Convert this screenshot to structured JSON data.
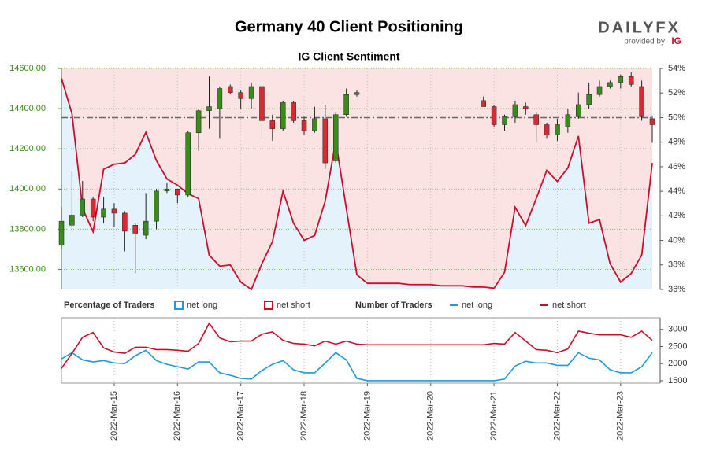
{
  "logo": {
    "name": "DAILYFX",
    "tagline": "provided by",
    "brand": "IG"
  },
  "chart_data": [
    {
      "type": "candlestick",
      "title": "Germany 40 Client Positioning",
      "subtitle": "IG Client Sentiment",
      "categories": [
        null,
        null,
        null,
        null,
        null,
        "2022-Mar-15",
        null,
        null,
        null,
        null,
        null,
        "2022-Mar-16",
        null,
        null,
        null,
        null,
        null,
        "2022-Mar-17",
        null,
        null,
        null,
        null,
        null,
        "2022-Mar-18",
        null,
        null,
        null,
        null,
        null,
        "2022-Mar-19",
        null,
        null,
        null,
        null,
        null,
        "2022-Mar-20",
        null,
        null,
        null,
        null,
        null,
        "2022-Mar-21",
        null,
        null,
        null,
        null,
        null,
        "2022-Mar-22",
        null,
        null,
        null,
        null,
        null,
        "2022-Mar-23",
        null,
        null,
        null
      ],
      "open": [
        13720,
        13820,
        13870,
        13950,
        13860,
        13900,
        13880,
        13820,
        13770,
        13840,
        13990,
        14000,
        13970,
        14280,
        14390,
        14400,
        14510,
        14480,
        14450,
        14510,
        14340,
        14300,
        14430,
        14340,
        14290,
        14350,
        14140,
        14370,
        14470,
        null,
        null,
        null,
        null,
        null,
        null,
        null,
        null,
        null,
        null,
        null,
        14440,
        14410,
        14320,
        14360,
        14410,
        14370,
        14320,
        14270,
        14310,
        14360,
        14420,
        14470,
        14510,
        14530,
        14560,
        14510,
        14350
      ],
      "high": [
        13910,
        14090,
        14040,
        13960,
        13960,
        13930,
        13890,
        13830,
        13980,
        14000,
        14030,
        14000,
        14290,
        14400,
        14560,
        14510,
        14520,
        14490,
        14530,
        14520,
        14370,
        14440,
        14440,
        14360,
        14410,
        14420,
        14380,
        14500,
        14490,
        null,
        null,
        null,
        null,
        null,
        null,
        null,
        null,
        null,
        null,
        null,
        14460,
        14420,
        14370,
        14440,
        14430,
        14380,
        14330,
        14350,
        14400,
        14480,
        14530,
        14540,
        14540,
        14570,
        14580,
        14540,
        14360
      ],
      "low": [
        13700,
        13810,
        13860,
        13840,
        13830,
        13810,
        13690,
        13580,
        13750,
        13800,
        13980,
        13930,
        13960,
        14190,
        14300,
        14250,
        14470,
        14400,
        14400,
        14250,
        14240,
        14290,
        14330,
        14270,
        14280,
        14100,
        14130,
        14360,
        14460,
        null,
        null,
        null,
        null,
        null,
        null,
        null,
        null,
        null,
        null,
        null,
        14410,
        14310,
        14290,
        14330,
        14370,
        14230,
        14250,
        14240,
        14280,
        14350,
        14400,
        14460,
        14500,
        14500,
        14510,
        14340,
        14230
      ],
      "close": [
        13840,
        13870,
        13950,
        13860,
        13900,
        13880,
        13790,
        13780,
        13840,
        13990,
        14000,
        13970,
        14280,
        14390,
        14410,
        14500,
        14480,
        14450,
        14510,
        14340,
        14300,
        14430,
        14340,
        14290,
        14350,
        14130,
        14370,
        14470,
        14480,
        null,
        null,
        null,
        null,
        null,
        null,
        null,
        null,
        null,
        null,
        null,
        14410,
        14320,
        14360,
        14420,
        14400,
        14320,
        14270,
        14320,
        14370,
        14420,
        14470,
        14510,
        14530,
        14560,
        14520,
        14360,
        14320
      ],
      "up_color": "#3b8a1c",
      "down_color": "#dc2832",
      "ylim": [
        13500,
        14600
      ],
      "yticks": [
        {
          "value": 13600,
          "label": "13600.00"
        },
        {
          "value": 13800,
          "label": "13800.00"
        },
        {
          "value": 14000,
          "label": "14000.00"
        },
        {
          "value": 14200,
          "label": "14200.00"
        },
        {
          "value": 14400,
          "label": "14400.00"
        },
        {
          "value": 14600,
          "label": "14600.00"
        }
      ],
      "y2lim": [
        36,
        54
      ],
      "y2ticks": [
        {
          "value": 36,
          "label": "36%"
        },
        {
          "value": 38,
          "label": "38%"
        },
        {
          "value": 40,
          "label": "40%"
        },
        {
          "value": 42,
          "label": "42%"
        },
        {
          "value": 44,
          "label": "44%"
        },
        {
          "value": 46,
          "label": "46%"
        },
        {
          "value": 48,
          "label": "48%"
        },
        {
          "value": 50,
          "label": "50%"
        },
        {
          "value": 52,
          "label": "52%"
        },
        {
          "value": 54,
          "label": "54%"
        }
      ],
      "y2_reference": 50,
      "legend_title": "Percentage of Traders",
      "series": [
        {
          "name": "net long",
          "color": "#c8102e",
          "fill": "#e3f2fb",
          "box": "#1e9bd7",
          "axis": "y2",
          "values": [
            53.2,
            50.3,
            42.6,
            40.7,
            45.8,
            46.2,
            46.3,
            47.0,
            48.8,
            46.5,
            45.0,
            44.5,
            43.8,
            43.4,
            38.8,
            37.9,
            38.0,
            36.6,
            36.0,
            38.1,
            39.9,
            44.0,
            41.4,
            40.0,
            40.4,
            43.2,
            48.1,
            42.6,
            37.2,
            36.5,
            36.5,
            36.5,
            36.5,
            36.4,
            36.4,
            36.4,
            36.3,
            36.3,
            36.3,
            36.2,
            36.2,
            36.1,
            37.4,
            42.7,
            41.2,
            43.4,
            45.7,
            44.8,
            45.9,
            48.5,
            41.4,
            41.7,
            38.1,
            36.6,
            37.3,
            38.8,
            46.3
          ]
        }
      ],
      "fill_above": {
        "name": "net short",
        "fill": "#fbe3e4",
        "box": "#c8102e"
      },
      "grid": true
    },
    {
      "type": "line",
      "legend_title": "Number of Traders",
      "ylim": [
        1430,
        3340
      ],
      "yticks": [
        1500,
        2000,
        2500,
        3000
      ],
      "series": [
        {
          "name": "net long",
          "color": "#1e9bd7",
          "values": [
            2140,
            2320,
            2110,
            2050,
            2090,
            2020,
            2000,
            2230,
            2390,
            2090,
            1980,
            1910,
            1840,
            2050,
            2050,
            1730,
            1660,
            1570,
            1550,
            1800,
            1980,
            2090,
            1820,
            1730,
            1730,
            2020,
            2320,
            2110,
            1570,
            1500,
            1500,
            1500,
            1500,
            1500,
            1500,
            1500,
            1500,
            1500,
            1500,
            1500,
            1500,
            1500,
            1550,
            1930,
            2070,
            2020,
            2020,
            1950,
            1950,
            2320,
            2160,
            2110,
            1820,
            1730,
            1730,
            1910,
            2320
          ]
        },
        {
          "name": "net short",
          "color": "#c8102e",
          "values": [
            1860,
            2300,
            2770,
            2910,
            2460,
            2340,
            2300,
            2480,
            2480,
            2410,
            2410,
            2390,
            2360,
            2590,
            3180,
            2750,
            2640,
            2660,
            2660,
            2860,
            2930,
            2680,
            2590,
            2570,
            2520,
            2660,
            2570,
            2660,
            2570,
            2550,
            2550,
            2550,
            2550,
            2550,
            2550,
            2550,
            2550,
            2550,
            2550,
            2550,
            2550,
            2590,
            2570,
            2910,
            2660,
            2410,
            2390,
            2320,
            2430,
            2950,
            2890,
            2840,
            2840,
            2840,
            2770,
            2950,
            2680
          ]
        }
      ]
    }
  ]
}
